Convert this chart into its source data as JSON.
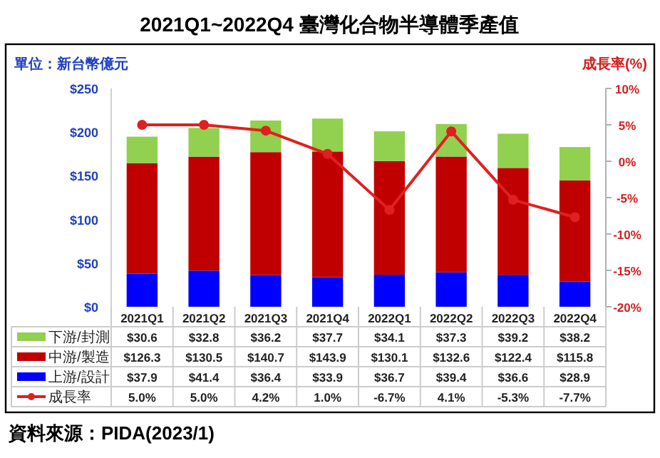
{
  "chart_data": {
    "type": "bar",
    "stacked": true,
    "title": "2021Q1~2022Q4 臺灣化合物半導體季產值",
    "ylabel": "單位：新台幣億元",
    "y2label": "成長率(%)",
    "categories": [
      "2021Q1",
      "2021Q2",
      "2021Q3",
      "2021Q4",
      "2022Q1",
      "2022Q2",
      "2022Q3",
      "2022Q4"
    ],
    "series": [
      {
        "name": "上游/設計",
        "color": "#0000ff",
        "values": [
          37.9,
          41.4,
          36.4,
          33.9,
          36.7,
          39.4,
          36.6,
          28.9
        ],
        "value_labels": [
          "$37.9",
          "$41.4",
          "$36.4",
          "$33.9",
          "$36.7",
          "$39.4",
          "$36.6",
          "$28.9"
        ]
      },
      {
        "name": "中游/製造",
        "color": "#c00000",
        "values": [
          126.3,
          130.5,
          140.7,
          143.9,
          130.1,
          132.6,
          122.4,
          115.8
        ],
        "value_labels": [
          "$126.3",
          "$130.5",
          "$140.7",
          "$143.9",
          "$130.1",
          "$132.6",
          "$122.4",
          "$115.8"
        ]
      },
      {
        "name": "下游/封測",
        "color": "#92d050",
        "values": [
          30.6,
          32.8,
          36.2,
          37.7,
          34.1,
          37.3,
          39.2,
          38.2
        ],
        "value_labels": [
          "$30.6",
          "$32.8",
          "$36.2",
          "$37.7",
          "$34.1",
          "$37.3",
          "$39.2",
          "$38.2"
        ]
      },
      {
        "name": "成長率",
        "type": "line",
        "axis": "y2",
        "color": "#e02020",
        "marker": "circle",
        "values": [
          5.0,
          5.0,
          4.2,
          1.0,
          -6.7,
          4.1,
          -5.3,
          -7.7
        ],
        "value_labels": [
          "5.0%",
          "5.0%",
          "4.2%",
          "1.0%",
          "-6.7%",
          "4.1%",
          "-5.3%",
          "-7.7%"
        ]
      }
    ],
    "ylim": [
      0,
      250
    ],
    "yticks": [
      {
        "value": 0,
        "label": "$0"
      },
      {
        "value": 50,
        "label": "$50"
      },
      {
        "value": 100,
        "label": "$100"
      },
      {
        "value": 150,
        "label": "$150"
      },
      {
        "value": 200,
        "label": "$200"
      },
      {
        "value": 250,
        "label": "$250"
      }
    ],
    "y2lim": [
      -20,
      10
    ],
    "y2ticks": [
      {
        "value": -20,
        "label": "-20%"
      },
      {
        "value": -15,
        "label": "-15%"
      },
      {
        "value": -10,
        "label": "-10%"
      },
      {
        "value": -5,
        "label": "-5%"
      },
      {
        "value": 0,
        "label": "0%"
      },
      {
        "value": 5,
        "label": "5%"
      },
      {
        "value": 10,
        "label": "10%"
      }
    ],
    "legend": "bottom",
    "annotations": [
      "資料來源：PIDA(2023/1)"
    ]
  }
}
